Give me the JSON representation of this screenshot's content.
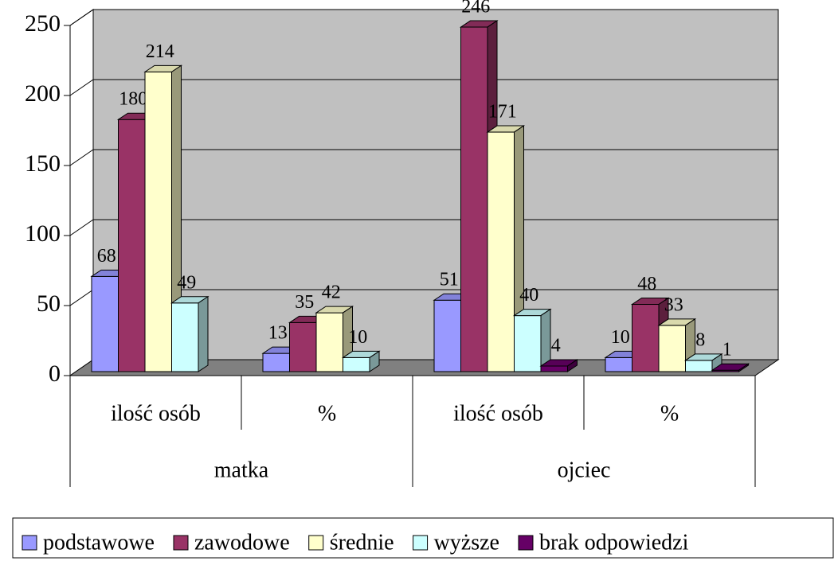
{
  "chart_data": {
    "type": "bar3d",
    "categories": [
      "ilość osób",
      "%",
      "ilość osób",
      "%"
    ],
    "groups": [
      "matka",
      "ojciec"
    ],
    "series": [
      {
        "name": "podstawowe",
        "color": "#9999ff",
        "values": [
          68,
          13,
          51,
          10
        ]
      },
      {
        "name": "zawodowe",
        "color": "#993366",
        "values": [
          180,
          35,
          246,
          48
        ]
      },
      {
        "name": "średnie",
        "color": "#ffffcc",
        "values": [
          214,
          42,
          171,
          33
        ]
      },
      {
        "name": "wyższe",
        "color": "#ccffff",
        "values": [
          49,
          10,
          40,
          8
        ]
      },
      {
        "name": "brak odpowiedzi",
        "color": "#660066",
        "values": [
          null,
          null,
          4,
          1
        ]
      }
    ],
    "ylim": [
      0,
      250
    ],
    "yticks": [
      0,
      50,
      100,
      150,
      200,
      250
    ],
    "grid": true,
    "legend": "bottom"
  }
}
